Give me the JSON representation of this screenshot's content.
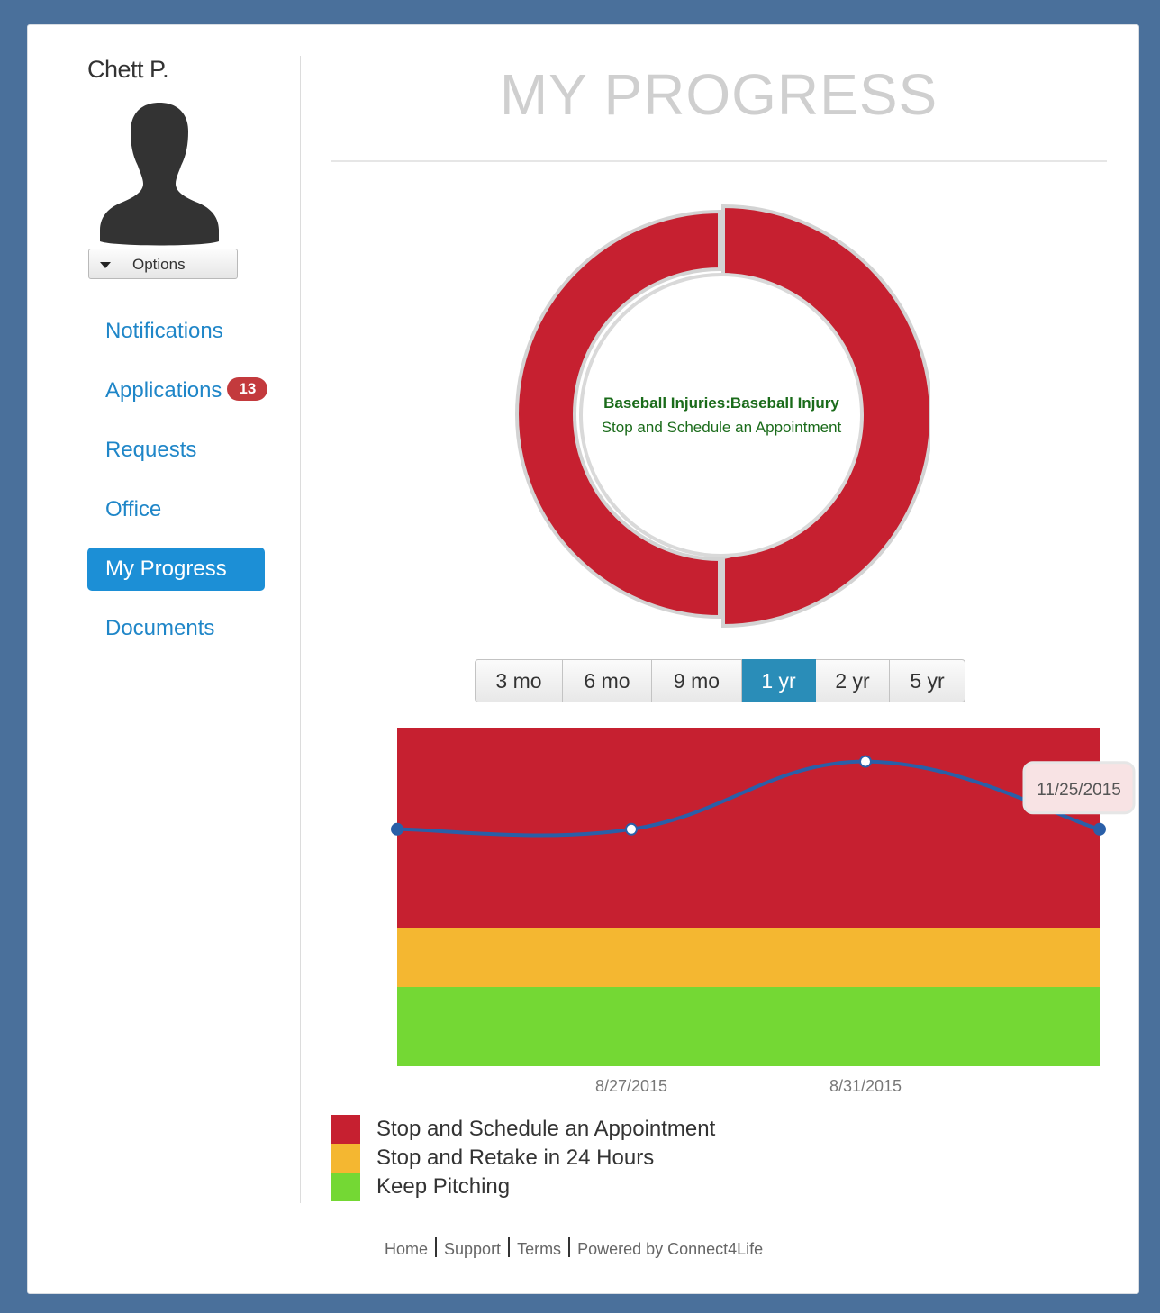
{
  "user": {
    "name": "Chett P.",
    "options_label": "Options"
  },
  "nav": {
    "items": [
      {
        "label": "Notifications"
      },
      {
        "label": "Applications",
        "badge": "13"
      },
      {
        "label": "Requests"
      },
      {
        "label": "Office"
      },
      {
        "label": "My Progress",
        "active": true
      },
      {
        "label": "Documents"
      }
    ]
  },
  "page": {
    "title": "MY PROGRESS"
  },
  "donut": {
    "line1": "Baseball Injuries:Baseball Injury",
    "line2": "Stop and Schedule an Appointment",
    "color": "#c62030"
  },
  "range": {
    "options": [
      "3 mo",
      "6 mo",
      "9 mo",
      "1 yr",
      "2 yr",
      "5 yr"
    ],
    "selected": "1 yr"
  },
  "chart_data": {
    "type": "line",
    "x": [
      "",
      "8/27/2015",
      "8/31/2015",
      "11/25/2015"
    ],
    "x_tick_labels": [
      "8/27/2015",
      "8/31/2015"
    ],
    "series": [
      {
        "values": [
          0.7,
          0.7,
          0.9,
          0.7
        ],
        "color": "#2a5fa8"
      }
    ],
    "tooltip": "11/25/2015",
    "bands": [
      {
        "label": "Stop and Schedule an Appointment",
        "color": "#c62030"
      },
      {
        "label": "Stop and Retake in 24 Hours",
        "color": "#f4b731"
      },
      {
        "label": "Keep Pitching",
        "color": "#74d834"
      }
    ]
  },
  "legend": [
    {
      "label": "Stop and Schedule an Appointment",
      "color": "#c62030"
    },
    {
      "label": "Stop and Retake in 24 Hours",
      "color": "#f4b731"
    },
    {
      "label": "Keep Pitching",
      "color": "#74d834"
    }
  ],
  "footer": {
    "home": "Home",
    "support": "Support",
    "terms": "Terms",
    "powered": "Powered by Connect4Life"
  }
}
